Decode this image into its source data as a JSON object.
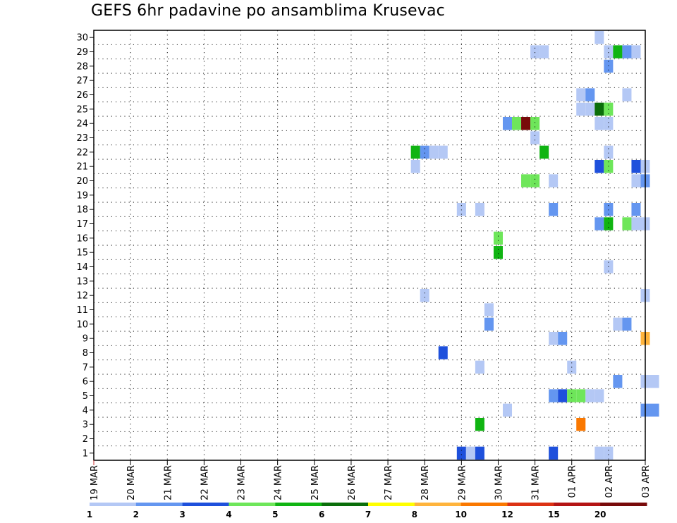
{
  "chart_data": {
    "type": "heatmap",
    "title": "GEFS 6hr padavine po ansamblima Krusevac",
    "xlabel": "",
    "ylabel": "",
    "x_ticks": [
      "19 MAR",
      "20 MAR",
      "21 MAR",
      "22 MAR",
      "23 MAR",
      "24 MAR",
      "25 MAR",
      "26 MAR",
      "27 MAR",
      "28 MAR",
      "29 MAR",
      "30 MAR",
      "31 MAR",
      "01 APR",
      "02 APR",
      "03 APR"
    ],
    "x_range_days": [
      0,
      15
    ],
    "y_ticks": [
      "1",
      "2",
      "3",
      "4",
      "5",
      "6",
      "7",
      "8",
      "9",
      "10",
      "11",
      "12",
      "13",
      "14",
      "15",
      "16",
      "17",
      "18",
      "19",
      "20",
      "21",
      "22",
      "23",
      "24",
      "25",
      "26",
      "27",
      "28",
      "29",
      "30"
    ],
    "y_range": [
      0,
      30
    ],
    "grid": true,
    "color_scale": {
      "labels": [
        "1",
        "2",
        "3",
        "4",
        "5",
        "6",
        "7",
        "8",
        "10",
        "12",
        "15",
        "20"
      ],
      "colors": [
        "#b4c8f5",
        "#6496f0",
        "#1e50dc",
        "#6ee65a",
        "#10b412",
        "#0a6e0a",
        "#ffff00",
        "#ffb43c",
        "#fa7800",
        "#dc3214",
        "#b41414",
        "#780a0a"
      ]
    },
    "cells": [
      {
        "member": 30,
        "time": "01 APR 18Z",
        "bin": 1
      },
      {
        "member": 29,
        "time": "31 MAR 00Z",
        "bin": 1
      },
      {
        "member": 29,
        "time": "31 MAR 06Z",
        "bin": 1
      },
      {
        "member": 29,
        "time": "02 APR 00Z",
        "bin": 1
      },
      {
        "member": 29,
        "time": "02 APR 06Z",
        "bin": 5
      },
      {
        "member": 29,
        "time": "02 APR 12Z",
        "bin": 2
      },
      {
        "member": 29,
        "time": "02 APR 18Z",
        "bin": 1
      },
      {
        "member": 28,
        "time": "02 APR 00Z",
        "bin": 2
      },
      {
        "member": 26,
        "time": "01 APR 06Z",
        "bin": 1
      },
      {
        "member": 26,
        "time": "01 APR 12Z",
        "bin": 2
      },
      {
        "member": 26,
        "time": "02 APR 12Z",
        "bin": 1
      },
      {
        "member": 25,
        "time": "01 APR 06Z",
        "bin": 1
      },
      {
        "member": 25,
        "time": "01 APR 12Z",
        "bin": 1
      },
      {
        "member": 25,
        "time": "01 APR 18Z",
        "bin": 6
      },
      {
        "member": 25,
        "time": "02 APR 00Z",
        "bin": 4
      },
      {
        "member": 24,
        "time": "30 MAR 06Z",
        "bin": 2
      },
      {
        "member": 24,
        "time": "30 MAR 12Z",
        "bin": 4
      },
      {
        "member": 24,
        "time": "30 MAR 18Z",
        "bin": 12
      },
      {
        "member": 24,
        "time": "31 MAR 00Z",
        "bin": 4
      },
      {
        "member": 24,
        "time": "01 APR 18Z",
        "bin": 1
      },
      {
        "member": 24,
        "time": "02 APR 00Z",
        "bin": 1
      },
      {
        "member": 23,
        "time": "31 MAR 00Z",
        "bin": 1
      },
      {
        "member": 22,
        "time": "27 MAR 18Z",
        "bin": 5
      },
      {
        "member": 22,
        "time": "28 MAR 00Z",
        "bin": 2
      },
      {
        "member": 22,
        "time": "28 MAR 06Z",
        "bin": 1
      },
      {
        "member": 22,
        "time": "28 MAR 12Z",
        "bin": 1
      },
      {
        "member": 22,
        "time": "31 MAR 06Z",
        "bin": 5
      },
      {
        "member": 22,
        "time": "02 APR 00Z",
        "bin": 1
      },
      {
        "member": 21,
        "time": "27 MAR 18Z",
        "bin": 1
      },
      {
        "member": 21,
        "time": "01 APR 18Z",
        "bin": 3
      },
      {
        "member": 21,
        "time": "02 APR 00Z",
        "bin": 4
      },
      {
        "member": 21,
        "time": "02 APR 18Z",
        "bin": 3
      },
      {
        "member": 21,
        "time": "03 APR 00Z",
        "bin": 1
      },
      {
        "member": 20,
        "time": "30 MAR 18Z",
        "bin": 4
      },
      {
        "member": 20,
        "time": "31 MAR 00Z",
        "bin": 4
      },
      {
        "member": 20,
        "time": "31 MAR 12Z",
        "bin": 1
      },
      {
        "member": 20,
        "time": "02 APR 18Z",
        "bin": 1
      },
      {
        "member": 20,
        "time": "03 APR 00Z",
        "bin": 2
      },
      {
        "member": 18,
        "time": "29 MAR 00Z",
        "bin": 1
      },
      {
        "member": 18,
        "time": "29 MAR 12Z",
        "bin": 1
      },
      {
        "member": 18,
        "time": "31 MAR 12Z",
        "bin": 2
      },
      {
        "member": 18,
        "time": "02 APR 00Z",
        "bin": 2
      },
      {
        "member": 18,
        "time": "02 APR 18Z",
        "bin": 2
      },
      {
        "member": 17,
        "time": "01 APR 18Z",
        "bin": 2
      },
      {
        "member": 17,
        "time": "02 APR 00Z",
        "bin": 5
      },
      {
        "member": 17,
        "time": "02 APR 12Z",
        "bin": 4
      },
      {
        "member": 17,
        "time": "02 APR 18Z",
        "bin": 1
      },
      {
        "member": 17,
        "time": "03 APR 00Z",
        "bin": 1
      },
      {
        "member": 16,
        "time": "30 MAR 00Z",
        "bin": 4
      },
      {
        "member": 15,
        "time": "30 MAR 00Z",
        "bin": 5
      },
      {
        "member": 14,
        "time": "02 APR 00Z",
        "bin": 1
      },
      {
        "member": 12,
        "time": "28 MAR 00Z",
        "bin": 1
      },
      {
        "member": 12,
        "time": "03 APR 00Z",
        "bin": 1
      },
      {
        "member": 11,
        "time": "29 MAR 18Z",
        "bin": 1
      },
      {
        "member": 10,
        "time": "29 MAR 18Z",
        "bin": 2
      },
      {
        "member": 10,
        "time": "02 APR 06Z",
        "bin": 1
      },
      {
        "member": 10,
        "time": "02 APR 12Z",
        "bin": 2
      },
      {
        "member": 9,
        "time": "31 MAR 12Z",
        "bin": 1
      },
      {
        "member": 9,
        "time": "31 MAR 18Z",
        "bin": 2
      },
      {
        "member": 9,
        "time": "03 APR 00Z",
        "bin": 8
      },
      {
        "member": 8,
        "time": "28 MAR 12Z",
        "bin": 3
      },
      {
        "member": 7,
        "time": "29 MAR 12Z",
        "bin": 1
      },
      {
        "member": 7,
        "time": "01 APR 00Z",
        "bin": 1
      },
      {
        "member": 6,
        "time": "02 APR 06Z",
        "bin": 2
      },
      {
        "member": 6,
        "time": "03 APR 00Z",
        "bin": 1
      },
      {
        "member": 6,
        "time": "03 APR 06Z",
        "bin": 1
      },
      {
        "member": 5,
        "time": "31 MAR 12Z",
        "bin": 2
      },
      {
        "member": 5,
        "time": "31 MAR 18Z",
        "bin": 3
      },
      {
        "member": 5,
        "time": "01 APR 00Z",
        "bin": 4
      },
      {
        "member": 5,
        "time": "01 APR 06Z",
        "bin": 4
      },
      {
        "member": 5,
        "time": "01 APR 12Z",
        "bin": 1
      },
      {
        "member": 5,
        "time": "01 APR 18Z",
        "bin": 1
      },
      {
        "member": 4,
        "time": "30 MAR 06Z",
        "bin": 1
      },
      {
        "member": 4,
        "time": "03 APR 00Z",
        "bin": 2
      },
      {
        "member": 4,
        "time": "03 APR 06Z",
        "bin": 2
      },
      {
        "member": 3,
        "time": "29 MAR 12Z",
        "bin": 5
      },
      {
        "member": 3,
        "time": "01 APR 06Z",
        "bin": 9
      },
      {
        "member": 1,
        "time": "29 MAR 00Z",
        "bin": 3
      },
      {
        "member": 1,
        "time": "29 MAR 06Z",
        "bin": 1
      },
      {
        "member": 1,
        "time": "29 MAR 12Z",
        "bin": 3
      },
      {
        "member": 1,
        "time": "31 MAR 12Z",
        "bin": 3
      },
      {
        "member": 1,
        "time": "01 APR 18Z",
        "bin": 1
      },
      {
        "member": 1,
        "time": "02 APR 00Z",
        "bin": 1
      }
    ]
  }
}
